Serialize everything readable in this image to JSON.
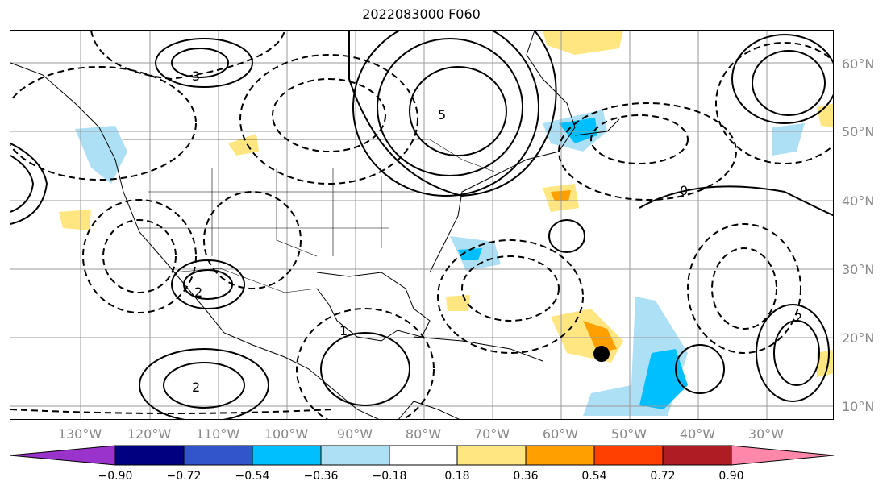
{
  "title": "2022083000 F060",
  "lat_labels": [
    "60°N",
    "50°N",
    "40°N",
    "30°N",
    "20°N",
    "10°N"
  ],
  "lon_labels": [
    "130°W",
    "120°W",
    "110°W",
    "100°W",
    "90°W",
    "80°W",
    "70°W",
    "60°W",
    "50°W",
    "40°W",
    "30°W"
  ],
  "colorbar": {
    "ticks": [
      "−0.90",
      "−0.72",
      "−0.54",
      "−0.36",
      "−0.18",
      "0.18",
      "0.36",
      "0.54",
      "0.72",
      "0.90"
    ],
    "colors": [
      "#9933cc",
      "#000080",
      "#3355cc",
      "#00bfff",
      "#aee0f5",
      "#ffffff",
      "#ffe680",
      "#ffa000",
      "#ff4000",
      "#b01c24",
      "#ff88aa"
    ]
  },
  "contour_labels": {
    "sw_low": "2",
    "mexico_high": "2",
    "gulf_low": "1",
    "zero_mid": "0",
    "ne_high": "5",
    "atl_high": "2",
    "north_ridge": "3"
  },
  "marker": "storm-center"
}
